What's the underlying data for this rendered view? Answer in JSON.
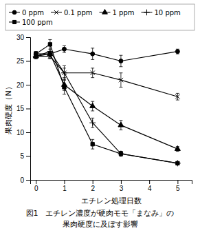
{
  "chart_data": {
    "type": "line",
    "title": "図1　エチレン濃度が硬肉モモ「まなみ」の",
    "subtitle": "果肉硬度に及ぼす影響",
    "xlabel": "エチレン処理日数",
    "ylabel": "果肉硬度（N）",
    "x": [
      0,
      0.5,
      1,
      2,
      3,
      5
    ],
    "series": [
      {
        "name": "0 ppm",
        "color": "#000000",
        "marker": "circle",
        "line_style": "solid",
        "values": [
          26.5,
          26.5,
          27.5,
          26.5,
          25.0,
          27.0
        ],
        "errors": [
          0.5,
          0.5,
          0.7,
          1.2,
          1.2,
          0.5
        ]
      },
      {
        "name": "0.1 ppm",
        "color": "#000000",
        "marker": "x",
        "line_style": "solid",
        "values": [
          26.0,
          26.0,
          22.5,
          22.5,
          21.0,
          17.5
        ],
        "errors": [
          0.5,
          0.5,
          1.0,
          1.0,
          1.5,
          0.7
        ]
      },
      {
        "name": "1 ppm",
        "color": "#000000",
        "marker": "triangle",
        "line_style": "solid",
        "values": [
          26.0,
          26.5,
          20.0,
          15.5,
          11.5,
          6.5
        ],
        "errors": [
          0.5,
          0.5,
          1.2,
          1.0,
          1.0,
          0.5
        ]
      },
      {
        "name": "10 ppm",
        "color": "#000000",
        "marker": "plus",
        "line_style": "solid",
        "values": [
          26.0,
          27.0,
          22.5,
          12.0,
          5.5,
          3.5
        ],
        "errors": [
          0.5,
          1.5,
          1.5,
          1.0,
          0.5,
          0.3
        ]
      },
      {
        "name": "100 ppm",
        "color": "#000000",
        "marker": "square",
        "line_style": "solid",
        "values": [
          26.5,
          28.5,
          19.5,
          7.5,
          5.5,
          3.5
        ],
        "errors": [
          0.5,
          1.0,
          1.5,
          1.0,
          0.5,
          0.3
        ]
      }
    ],
    "xlim": [
      -0.2,
      5.5
    ],
    "xticks": [
      0,
      1,
      2,
      3,
      4,
      5
    ],
    "ylim": [
      0,
      30
    ],
    "yticks": [
      0,
      5,
      10,
      15,
      20,
      25,
      30
    ],
    "grid": false,
    "legend": "top"
  }
}
